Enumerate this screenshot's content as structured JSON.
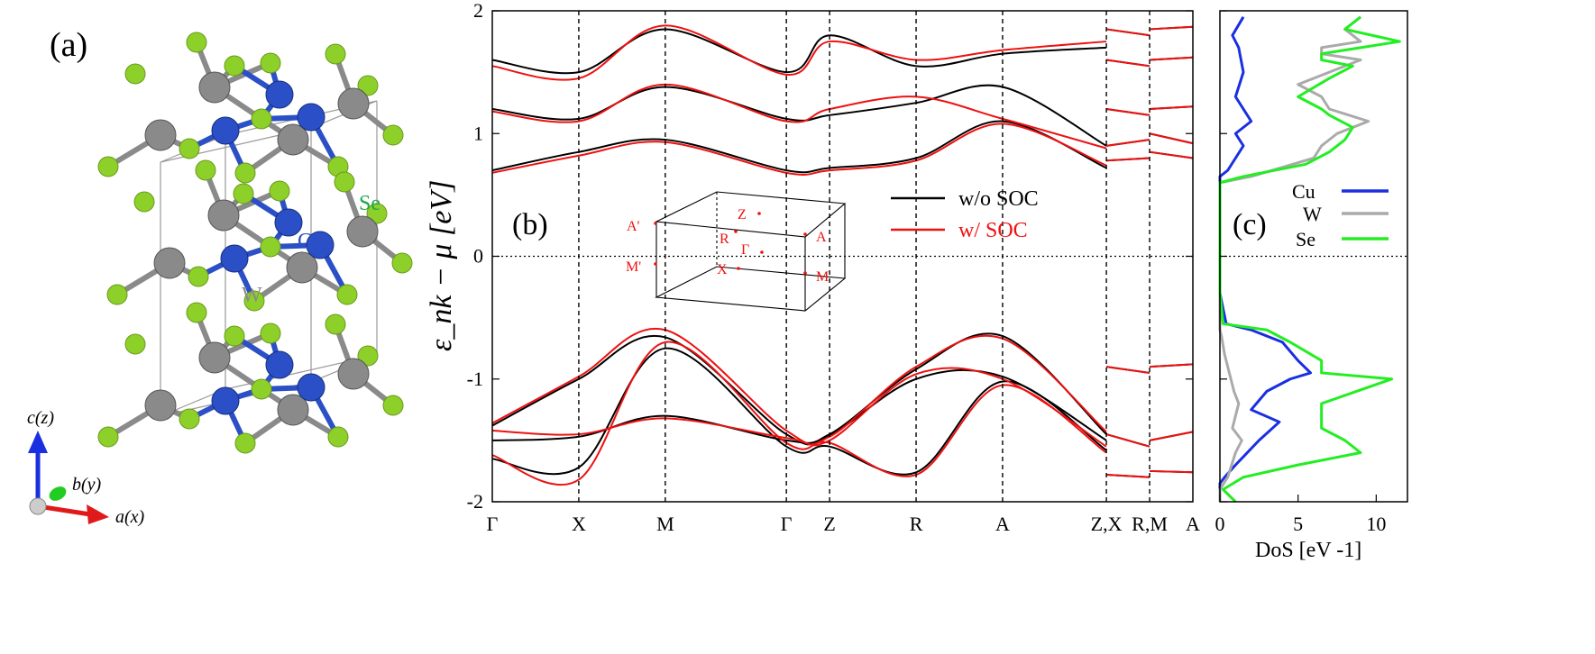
{
  "panel_labels": {
    "a": "(a)",
    "b": "(b)",
    "c": "(c)"
  },
  "structure": {
    "atom_labels": {
      "Cu": "Cu",
      "W": "W",
      "Se": "Se"
    },
    "axis_labels": {
      "c": "c(z)",
      "b": "b(y)",
      "a": "a(x)"
    },
    "colors": {
      "Cu": "#2b4fc6",
      "W": "#8a8a8a",
      "Se": "#8ed02a",
      "Se_label": "#1ea84a"
    }
  },
  "brillouin_zone": {
    "points": [
      "A'",
      "Z",
      "R",
      "Γ",
      "A",
      "M'",
      "X",
      "M"
    ]
  },
  "chart_data": [
    {
      "type": "line",
      "title": "",
      "xlabel": "",
      "ylabel": "ε_nk − μ [eV]",
      "ylim": [
        -2,
        2
      ],
      "y_ticks": [
        -2,
        -1,
        0,
        1,
        2
      ],
      "x_ticks": [
        "Γ",
        "X",
        "M",
        "Γ",
        "Z",
        "R",
        "A",
        "Z,X",
        "R,M",
        "A"
      ],
      "x_tick_positions": [
        0,
        1,
        2,
        3.4,
        3.9,
        4.9,
        5.9,
        7.1,
        7.6,
        8.1
      ],
      "x_range": [
        0,
        8.1
      ],
      "path_breaks": [
        7.1,
        7.6
      ],
      "legend": [
        {
          "name": "w/o SOC",
          "color": "#000000"
        },
        {
          "name": "w/ SOC",
          "color": "#ee1111"
        }
      ],
      "valence_band_max": {
        "x": "M",
        "y": -0.62
      },
      "conduction_band_min": {
        "x": "Γ",
        "y": 0.7
      },
      "series": [
        {
          "name": "w/o SOC",
          "color": "#000000",
          "bands": [
            {
              "x": [
                0,
                1,
                2,
                3.4,
                3.9,
                4.9,
                5.9,
                7.1
              ],
              "y": [
                -1.38,
                -1.0,
                -0.66,
                -1.45,
                -1.45,
                -0.92,
                -0.65,
                -1.45
              ]
            },
            {
              "x": [
                0,
                1,
                2,
                3.4,
                3.9,
                4.9,
                5.9,
                7.1
              ],
              "y": [
                -1.5,
                -1.47,
                -1.3,
                -1.5,
                -1.46,
                -1.0,
                -0.98,
                -1.5
              ]
            },
            {
              "x": [
                0,
                1,
                2,
                3.4,
                3.9,
                4.9,
                5.9,
                7.1
              ],
              "y": [
                -1.65,
                -1.72,
                -0.75,
                -1.55,
                -1.55,
                -1.76,
                -1.02,
                -1.58
              ]
            },
            {
              "x": [
                0,
                1,
                2,
                3.4,
                3.9,
                4.9,
                5.9,
                7.1
              ],
              "y": [
                0.7,
                0.85,
                0.95,
                0.7,
                0.72,
                0.8,
                1.1,
                0.72
              ]
            },
            {
              "x": [
                0,
                1,
                2,
                3.4,
                3.9,
                4.9,
                5.9,
                7.1
              ],
              "y": [
                1.2,
                1.12,
                1.38,
                1.12,
                1.15,
                1.25,
                1.38,
                0.9
              ]
            },
            {
              "x": [
                0,
                1,
                2,
                3.4,
                3.9,
                4.9,
                5.9,
                7.1
              ],
              "y": [
                1.6,
                1.5,
                1.85,
                1.5,
                1.8,
                1.55,
                1.65,
                1.7
              ]
            }
          ]
        },
        {
          "name": "w/ SOC",
          "color": "#ee1111",
          "bands": [
            {
              "x": [
                0,
                1,
                2,
                3.4,
                3.9,
                4.9,
                5.9,
                7.1
              ],
              "y": [
                -1.36,
                -0.98,
                -0.6,
                -1.42,
                -1.47,
                -0.9,
                -0.67,
                -1.43
              ]
            },
            {
              "x": [
                0,
                1,
                2,
                3.4,
                3.9,
                4.9,
                5.9,
                7.1
              ],
              "y": [
                -1.42,
                -1.45,
                -1.32,
                -1.48,
                -1.5,
                -0.96,
                -1.0,
                -1.55
              ]
            },
            {
              "x": [
                0,
                1,
                2,
                3.4,
                3.9,
                4.9,
                5.9,
                7.1
              ],
              "y": [
                -1.62,
                -1.82,
                -0.7,
                -1.52,
                -1.52,
                -1.78,
                -1.05,
                -1.6
              ]
            },
            {
              "x": [
                0,
                1,
                2,
                3.4,
                3.9,
                4.9,
                5.9,
                7.1
              ],
              "y": [
                0.68,
                0.82,
                0.93,
                0.68,
                0.7,
                0.78,
                1.08,
                0.74
              ]
            },
            {
              "x": [
                0,
                1,
                2,
                3.4,
                3.9,
                4.9,
                5.9,
                7.1
              ],
              "y": [
                1.18,
                1.1,
                1.4,
                1.1,
                1.2,
                1.3,
                1.12,
                0.88
              ]
            },
            {
              "x": [
                0,
                1,
                2,
                3.4,
                3.9,
                4.9,
                5.9,
                7.1
              ],
              "y": [
                1.55,
                1.45,
                1.88,
                1.48,
                1.75,
                1.6,
                1.68,
                1.75
              ]
            }
          ]
        }
      ]
    },
    {
      "type": "line",
      "title": "",
      "xlabel": "DoS [eV -1]",
      "ylabel": "",
      "xlim": [
        0,
        12
      ],
      "x_ticks": [
        0,
        5,
        10
      ],
      "ylim": [
        -2,
        2
      ],
      "series": [
        {
          "name": "Cu",
          "color": "#1a2fe0",
          "x": [
            0,
            0,
            0,
            0.3,
            1.0,
            2.5,
            3.8,
            2.0,
            3.0,
            4.5,
            5.8,
            5.0,
            4.0,
            2.0,
            0.4,
            0,
            0,
            0,
            0,
            0,
            0,
            0,
            0.5,
            1.0,
            1.5,
            1.0,
            2.0,
            1.0,
            1.5,
            1.2,
            0.8,
            1.5
          ],
          "y": [
            -2,
            -1.9,
            -1.85,
            -1.8,
            -1.7,
            -1.5,
            -1.35,
            -1.25,
            -1.1,
            -1.0,
            -0.95,
            -0.85,
            -0.7,
            -0.6,
            -0.55,
            -0.3,
            0,
            0.3,
            0.5,
            0.6,
            0.62,
            0.65,
            0.7,
            0.8,
            0.9,
            1.0,
            1.1,
            1.3,
            1.5,
            1.7,
            1.8,
            1.95
          ]
        },
        {
          "name": "W",
          "color": "#aaaaaa",
          "x": [
            0,
            0,
            0.5,
            1.0,
            1.4,
            0.8,
            1.2,
            0.9,
            0.6,
            0.3,
            0.1,
            0,
            0,
            0,
            0,
            0,
            2.0,
            6.0,
            6.5,
            7.5,
            8.5,
            9.5,
            7.0,
            6.5,
            5.0,
            7.0,
            9.0,
            6.5,
            6.5,
            9.0,
            8.0,
            9.0
          ],
          "y": [
            -2,
            -1.9,
            -1.8,
            -1.6,
            -1.5,
            -1.4,
            -1.2,
            -1.1,
            -0.95,
            -0.8,
            -0.65,
            -0.6,
            -0.3,
            0,
            0.3,
            0.6,
            0.65,
            0.8,
            0.9,
            1.0,
            1.05,
            1.1,
            1.2,
            1.3,
            1.4,
            1.5,
            1.6,
            1.65,
            1.7,
            1.75,
            1.85,
            1.95
          ]
        },
        {
          "name": "Se",
          "color": "#22ee22",
          "x": [
            1.0,
            0.2,
            1.5,
            5.0,
            9.0,
            8.0,
            6.5,
            6.5,
            11.0,
            6.5,
            6.5,
            4.5,
            3.0,
            0.2,
            0,
            0,
            0,
            0,
            1.5,
            5.5,
            7.0,
            8.0,
            8.5,
            7.0,
            6.5,
            5.0,
            7.0,
            8.5,
            6.5,
            6.5,
            9.0,
            11.5,
            8.0,
            9.0
          ],
          "y": [
            -2,
            -1.9,
            -1.8,
            -1.7,
            -1.6,
            -1.5,
            -1.4,
            -1.2,
            -1.0,
            -0.95,
            -0.85,
            -0.7,
            -0.6,
            -0.55,
            -0.3,
            0,
            0.3,
            0.6,
            0.65,
            0.75,
            0.85,
            0.95,
            1.05,
            1.15,
            1.2,
            1.3,
            1.45,
            1.55,
            1.6,
            1.65,
            1.7,
            1.75,
            1.85,
            1.95
          ]
        }
      ]
    }
  ]
}
